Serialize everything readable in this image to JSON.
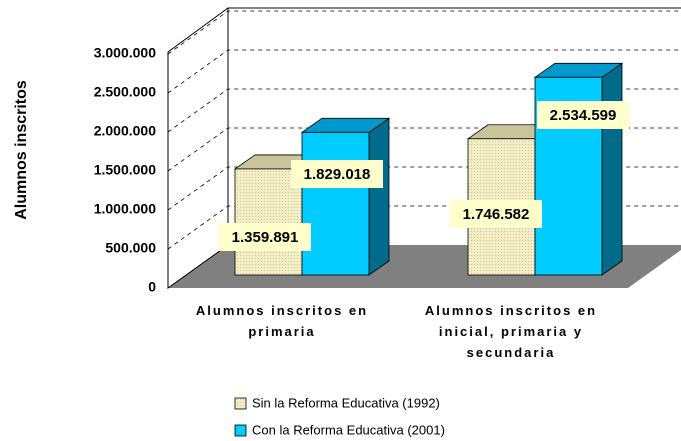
{
  "chart_data": {
    "type": "bar3d",
    "y_label": "Alumnos inscritos",
    "categories": [
      "Alumnos inscritos en primaria",
      "Alumnos inscritos en inicial, primaria y secundaria"
    ],
    "series": [
      {
        "name": "Sin la Reforma Educativa (1992)",
        "color": "#f2edc4",
        "values": [
          1359891,
          1746582
        ],
        "value_labels": [
          "1.359.891",
          "1.746.582"
        ]
      },
      {
        "name": "Con la Reforma Educativa (2001)",
        "color": "#00ccff",
        "values": [
          1829018,
          2534599
        ],
        "value_labels": [
          "1.829.018",
          "2.534.599"
        ]
      }
    ],
    "ylim": [
      0,
      3000000
    ],
    "yticks": [
      0,
      {
        "value": 500000,
        "label": "500.000"
      },
      {
        "value": 1000000,
        "label": "1.000.000"
      },
      {
        "value": 1500000,
        "label": "1.500.000"
      },
      {
        "value": 2000000,
        "label": "2.000.000"
      },
      {
        "value": 2500000,
        "label": "2.500.000"
      },
      {
        "value": 3000000,
        "label": "3.000.000"
      }
    ],
    "grid": true,
    "legend": "bottom"
  }
}
